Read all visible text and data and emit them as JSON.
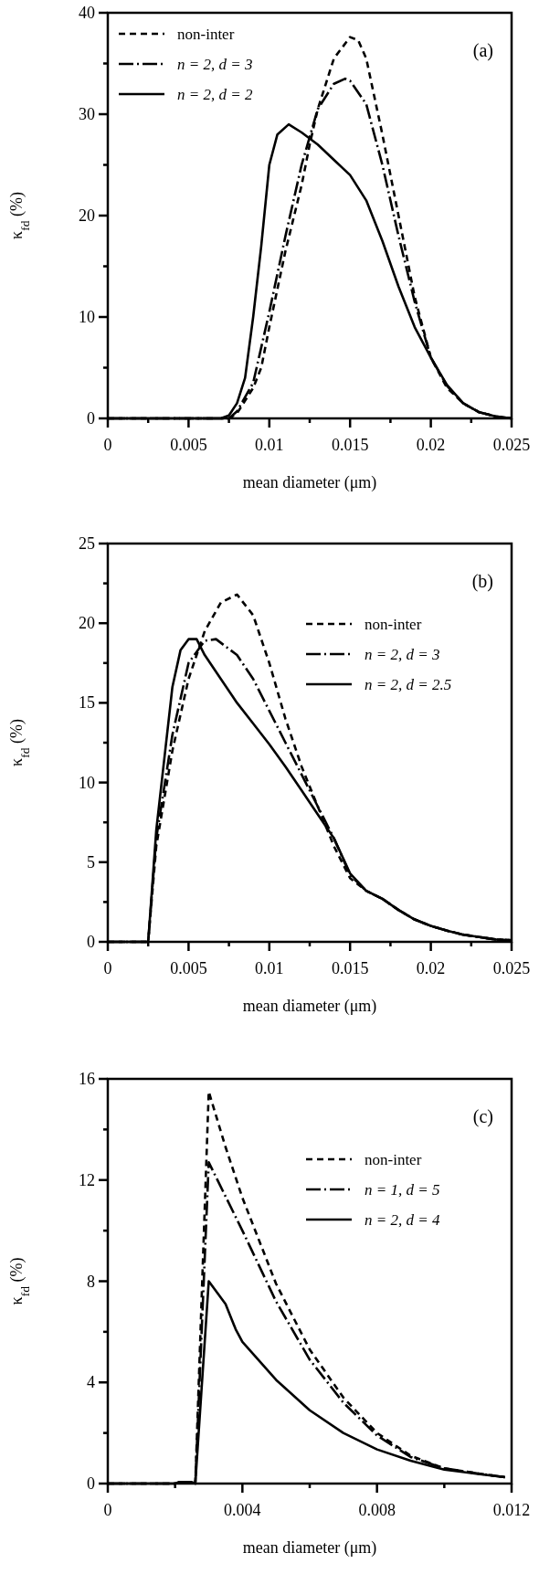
{
  "chart_data": [
    {
      "type": "line",
      "annotations": [
        "(a)"
      ],
      "xlabel": "mean diameter (μm)",
      "ylabel": "κ$_{fd}$ (%)",
      "xlim": [
        0,
        0.025
      ],
      "ylim": [
        0,
        40
      ],
      "xticks": [
        0,
        {
          "value": 0.0025,
          "label": null
        },
        0.005,
        {
          "value": 0.0075,
          "label": null
        },
        0.01,
        {
          "value": 0.0125,
          "label": null
        },
        0.015,
        {
          "value": 0.0175,
          "label": null
        },
        0.02,
        {
          "value": 0.0225,
          "label": null
        },
        0.025
      ],
      "yticks": [
        0,
        {
          "value": 5,
          "label": null
        },
        10,
        {
          "value": 15,
          "label": null
        },
        20,
        {
          "value": 25,
          "label": null
        },
        30,
        {
          "value": 35,
          "label": null
        },
        40
      ],
      "legend": "top left",
      "series": [
        {
          "name": "non-inter",
          "color": "#000000",
          "line_style": "dashed",
          "x": [
            0,
            0.0075,
            0.008,
            0.009,
            0.0095,
            0.01,
            0.011,
            0.012,
            0.0125,
            0.013,
            0.014,
            0.015,
            0.0155,
            0.016,
            0.017,
            0.018,
            0.019,
            0.02,
            0.021,
            0.022,
            0.023,
            0.024,
            0.025
          ],
          "values": [
            0,
            0,
            0.5,
            3,
            5,
            9,
            16.5,
            23,
            27,
            30.5,
            35.5,
            37.6,
            37.3,
            35.5,
            28,
            20,
            12,
            6,
            3,
            1.5,
            0.6,
            0.2,
            0
          ]
        },
        {
          "name": "n = 2, d = 3",
          "color": "#000000",
          "line_style": "dashdot",
          "x": [
            0,
            0.0075,
            0.008,
            0.009,
            0.01,
            0.011,
            0.012,
            0.013,
            0.014,
            0.0147,
            0.015,
            0.016,
            0.017,
            0.018,
            0.019,
            0.02,
            0.021,
            0.022,
            0.023,
            0.024,
            0.025
          ],
          "values": [
            0,
            0,
            0.7,
            3.5,
            10.5,
            18,
            25,
            30.5,
            33,
            33.5,
            33.3,
            31,
            25,
            18,
            11.5,
            6,
            3.2,
            1.5,
            0.6,
            0.2,
            0
          ]
        },
        {
          "name": "n = 2, d = 2",
          "color": "#000000",
          "line_style": "solid",
          "x": [
            0,
            0.007,
            0.0075,
            0.008,
            0.0085,
            0.009,
            0.0095,
            0.01,
            0.0105,
            0.0112,
            0.012,
            0.013,
            0.014,
            0.015,
            0.016,
            0.017,
            0.018,
            0.019,
            0.02,
            0.021,
            0.022,
            0.023,
            0.024,
            0.025
          ],
          "values": [
            0,
            0,
            0.3,
            1.5,
            4,
            10,
            17,
            25,
            28,
            29,
            28.2,
            27,
            25.5,
            24,
            21.5,
            17.5,
            13,
            9,
            6,
            3.3,
            1.5,
            0.6,
            0.2,
            0
          ]
        }
      ]
    },
    {
      "type": "line",
      "annotations": [
        "(b)"
      ],
      "xlabel": "mean diameter (μm)",
      "ylabel": "κ$_{fd}$ (%)",
      "xlim": [
        0,
        0.025
      ],
      "ylim": [
        0,
        25
      ],
      "xticks": [
        0,
        {
          "value": 0.0025,
          "label": null
        },
        0.005,
        {
          "value": 0.0075,
          "label": null
        },
        0.01,
        {
          "value": 0.0125,
          "label": null
        },
        0.015,
        {
          "value": 0.0175,
          "label": null
        },
        0.02,
        {
          "value": 0.0225,
          "label": null
        },
        0.025
      ],
      "yticks": [
        0,
        {
          "value": 2.5,
          "label": null
        },
        5,
        {
          "value": 7.5,
          "label": null
        },
        10,
        {
          "value": 12.5,
          "label": null
        },
        15,
        {
          "value": 17.5,
          "label": null
        },
        20,
        {
          "value": 22.5,
          "label": null
        },
        25
      ],
      "legend": "top right",
      "series": [
        {
          "name": "non-inter",
          "color": "#000000",
          "line_style": "dashed",
          "x": [
            0,
            0.0025,
            0.003,
            0.0035,
            0.004,
            0.005,
            0.006,
            0.007,
            0.008,
            0.009,
            0.01,
            0.011,
            0.012,
            0.013,
            0.014,
            0.015,
            0.016,
            0.017,
            0.018,
            0.019,
            0.02,
            0.021,
            0.022,
            0.023,
            0.024,
            0.025
          ],
          "values": [
            0,
            0,
            6,
            9,
            12,
            16.5,
            19.5,
            21.3,
            21.8,
            20.5,
            17.5,
            14,
            11,
            8.5,
            6,
            4,
            3.2,
            2.7,
            2,
            1.4,
            1,
            0.7,
            0.45,
            0.3,
            0.15,
            0.1
          ]
        },
        {
          "name": "n = 2, d = 3",
          "color": "#000000",
          "line_style": "dashdot",
          "x": [
            0,
            0.0025,
            0.003,
            0.004,
            0.005,
            0.006,
            0.0067,
            0.008,
            0.009,
            0.01,
            0.011,
            0.012,
            0.013,
            0.014,
            0.015,
            0.016,
            0.017,
            0.018,
            0.019,
            0.02,
            0.021,
            0.022,
            0.023,
            0.024,
            0.025
          ],
          "values": [
            0,
            0,
            6.5,
            13,
            17.5,
            18.9,
            19,
            18,
            16.5,
            14.5,
            12.5,
            10.5,
            8.5,
            6.5,
            4.2,
            3.2,
            2.7,
            2,
            1.4,
            1,
            0.7,
            0.45,
            0.3,
            0.15,
            0.1
          ]
        },
        {
          "name": "n = 2, d = 2.5",
          "color": "#000000",
          "line_style": "solid",
          "x": [
            0,
            0.0025,
            0.003,
            0.004,
            0.0045,
            0.005,
            0.0055,
            0.006,
            0.007,
            0.008,
            0.009,
            0.01,
            0.011,
            0.012,
            0.013,
            0.014,
            0.015,
            0.016,
            0.017,
            0.018,
            0.019,
            0.02,
            0.021,
            0.022,
            0.023,
            0.024,
            0.025
          ],
          "values": [
            0,
            0,
            7,
            16,
            18.3,
            19,
            19,
            18,
            16.5,
            15,
            13.7,
            12.4,
            11,
            9.5,
            8,
            6.5,
            4.3,
            3.2,
            2.7,
            2,
            1.4,
            1,
            0.7,
            0.45,
            0.3,
            0.15,
            0.1
          ]
        }
      ]
    },
    {
      "type": "line",
      "annotations": [
        "(c)"
      ],
      "xlabel": "mean diameter (μm)",
      "ylabel": "κ$_{fd}$ (%)",
      "xlim": [
        0,
        0.012
      ],
      "ylim": [
        0,
        16
      ],
      "xticks": [
        0,
        {
          "value": 0.002,
          "label": null
        },
        0.004,
        {
          "value": 0.006,
          "label": null
        },
        0.008,
        {
          "value": 0.01,
          "label": null
        },
        0.012
      ],
      "yticks": [
        0,
        {
          "value": 2,
          "label": null
        },
        4,
        {
          "value": 6,
          "label": null
        },
        8,
        {
          "value": 10,
          "label": null
        },
        12,
        {
          "value": 14,
          "label": null
        },
        16
      ],
      "legend": "top right",
      "series": [
        {
          "name": "non-inter",
          "color": "#000000",
          "line_style": "dashed",
          "x": [
            0,
            0.002,
            0.0021,
            0.0025,
            0.0026,
            0.003,
            0.0035,
            0.004,
            0.005,
            0.006,
            0.007,
            0.008,
            0.009,
            0.01,
            0.011,
            0.0118
          ],
          "values": [
            0,
            0,
            0.05,
            0.05,
            0,
            15.5,
            13.3,
            11.3,
            7.9,
            5.3,
            3.4,
            2,
            1.1,
            0.6,
            0.4,
            0.25
          ]
        },
        {
          "name": "n = 1, d = 5",
          "color": "#000000",
          "line_style": "dashdot",
          "x": [
            0,
            0.002,
            0.0021,
            0.0025,
            0.0026,
            0.003,
            0.004,
            0.005,
            0.006,
            0.007,
            0.008,
            0.009,
            0.01,
            0.011,
            0.0118
          ],
          "values": [
            0,
            0,
            0.05,
            0.05,
            0,
            12.7,
            10,
            7.2,
            4.9,
            3.2,
            1.9,
            1.05,
            0.6,
            0.4,
            0.25
          ]
        },
        {
          "name": "n = 2, d = 4",
          "color": "#000000",
          "line_style": "solid",
          "x": [
            0,
            0.002,
            0.0021,
            0.0025,
            0.0026,
            0.003,
            0.0035,
            0.0038,
            0.004,
            0.005,
            0.006,
            0.007,
            0.008,
            0.009,
            0.01,
            0.011,
            0.0118
          ],
          "values": [
            0,
            0,
            0.05,
            0.05,
            0,
            8,
            7.1,
            6.1,
            5.6,
            4.1,
            2.9,
            2,
            1.35,
            0.9,
            0.55,
            0.38,
            0.25
          ]
        }
      ]
    }
  ]
}
